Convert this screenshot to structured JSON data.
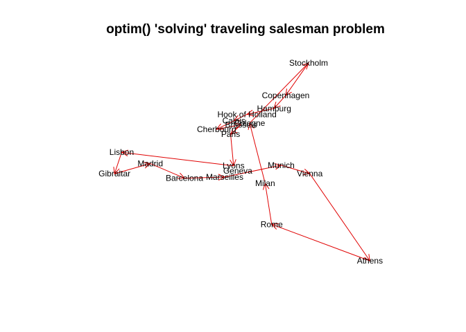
{
  "chart_data": {
    "type": "scatter",
    "title": "optim() 'solving' traveling salesman problem",
    "xlabel": "",
    "ylabel": "",
    "axes_visible": false,
    "route_color": "#e00000",
    "label_color": "#000000",
    "cities": [
      {
        "name": "Athens",
        "x": 2290,
        "y": -1650
      },
      {
        "name": "Barcelona",
        "x": -825,
        "y": -180
      },
      {
        "name": "Brussels",
        "x": 125,
        "y": 770
      },
      {
        "name": "Calais",
        "x": 5,
        "y": 840
      },
      {
        "name": "Cherbourg",
        "x": -285,
        "y": 690
      },
      {
        "name": "Cologne",
        "x": 270,
        "y": 800
      },
      {
        "name": "Copenhagen",
        "x": 875,
        "y": 1290
      },
      {
        "name": "Geneva",
        "x": 70,
        "y": -50
      },
      {
        "name": "Gibraltar",
        "x": -2000,
        "y": -100
      },
      {
        "name": "Hamburg",
        "x": 680,
        "y": 1060
      },
      {
        "name": "Hook of Holland",
        "x": 225,
        "y": 955
      },
      {
        "name": "Lisbon",
        "x": -1880,
        "y": 280
      },
      {
        "name": "Lyons",
        "x": 0,
        "y": 40
      },
      {
        "name": "Madrid",
        "x": -1400,
        "y": 80
      },
      {
        "name": "Marseilles",
        "x": -150,
        "y": -160
      },
      {
        "name": "Milan",
        "x": 530,
        "y": -270
      },
      {
        "name": "Munich",
        "x": 800,
        "y": 50
      },
      {
        "name": "Paris",
        "x": -50,
        "y": 600
      },
      {
        "name": "Rome",
        "x": 640,
        "y": -1000
      },
      {
        "name": "Stockholm",
        "x": 1260,
        "y": 1870
      },
      {
        "name": "Vienna",
        "x": 1280,
        "y": -100
      }
    ],
    "route": [
      "Lisbon",
      "Gibraltar",
      "Madrid",
      "Barcelona",
      "Marseilles",
      "Munich",
      "Vienna",
      "Athens",
      "Rome",
      "Milan",
      "Cologne",
      "Stockholm",
      "Copenhagen",
      "Hamburg",
      "Hook of Holland",
      "Calais",
      "Cherbourg",
      "Brussels",
      "Paris",
      "Lyons",
      "Lisbon"
    ],
    "xlim": [
      -2200,
      2600
    ],
    "ylim": [
      -2300,
      2250
    ]
  }
}
